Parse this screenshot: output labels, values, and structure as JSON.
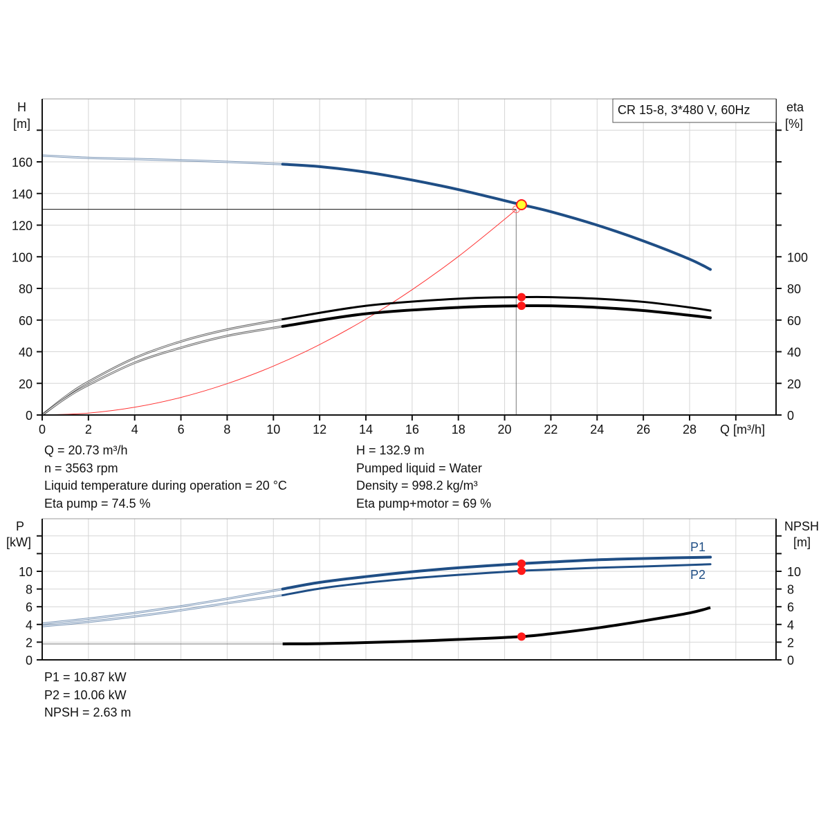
{
  "chart_data": [
    {
      "type": "line",
      "title": "CR 15-8, 3*480 V, 60Hz",
      "xlabel": "Q [m³/h]",
      "ylabel_left": {
        "name": "H",
        "unit": "[m]"
      },
      "ylabel_right": {
        "name": "eta",
        "unit": "[%]"
      },
      "xlim": [
        0,
        31.7
      ],
      "ylim": [
        0,
        200
      ],
      "x_ticks": [
        0,
        2,
        4,
        6,
        8,
        10,
        12,
        14,
        16,
        18,
        20,
        22,
        24,
        26,
        28
      ],
      "y_ticks_left": [
        0,
        20,
        40,
        60,
        80,
        100,
        120,
        140,
        160
      ],
      "y_ticks_right": [
        0,
        20,
        40,
        60,
        80,
        100
      ],
      "grid": true,
      "series": [
        {
          "name": "H",
          "color": "#1f4e85",
          "thin_until": 10.4,
          "x": [
            0,
            2,
            4,
            6,
            8,
            10.4,
            12,
            14,
            16,
            18,
            20,
            20.73,
            22,
            24,
            26,
            28,
            28.9
          ],
          "y": [
            164,
            162.5,
            161.8,
            161,
            160,
            158.5,
            157,
            153.5,
            148.5,
            142.5,
            135.5,
            132.9,
            128.5,
            120,
            110,
            98.5,
            92
          ]
        },
        {
          "name": "Eta pump",
          "color": "#000000",
          "thin_until": 10.4,
          "x": [
            0,
            1,
            2,
            4,
            6,
            8,
            10.4,
            14,
            18,
            20.73,
            22,
            24,
            26,
            28,
            28.9
          ],
          "y": [
            0,
            11.5,
            21,
            36,
            46.5,
            54,
            60.5,
            69,
            73.5,
            74.5,
            74.5,
            73.5,
            71.5,
            68,
            66
          ]
        },
        {
          "name": "Eta pump+motor",
          "color": "#000000",
          "thin_until": 10.4,
          "x": [
            0,
            1,
            2,
            4,
            6,
            8,
            10.4,
            14,
            18,
            20.73,
            22,
            24,
            26,
            28,
            28.9
          ],
          "y": [
            0,
            10.5,
            19,
            33,
            42.5,
            50,
            56,
            64,
            68,
            69,
            69,
            68,
            66,
            63,
            61.5
          ]
        },
        {
          "name": "System curve",
          "color": "#ff3333",
          "x": [
            0,
            2,
            4,
            6,
            8,
            10,
            12,
            14,
            16,
            18,
            20,
            20.5
          ],
          "y": [
            0,
            1.2,
            4.9,
            11.1,
            19.8,
            30.9,
            44.5,
            60.6,
            79.2,
            100.2,
            123.7,
            130
          ]
        }
      ],
      "duty_point": {
        "q": 20.73,
        "h": 132.9,
        "eta_pump": 74.5,
        "eta_total": 69
      },
      "requested_point": {
        "q": 20.5,
        "h": 130
      }
    },
    {
      "type": "line",
      "xlabel": "Q [m³/h]",
      "ylabel_left": {
        "name": "P",
        "unit": "[kW]"
      },
      "ylabel_right": {
        "name": "NPSH",
        "unit": "[m]"
      },
      "xlim": [
        0,
        31.7
      ],
      "ylim": [
        0,
        16
      ],
      "y_ticks": [
        0,
        2,
        4,
        6,
        8,
        10
      ],
      "grid": true,
      "series": [
        {
          "name": "P1",
          "color": "#1f4e85",
          "thin_until": 10.4,
          "x": [
            0,
            2,
            4,
            6,
            8,
            10.4,
            12,
            14,
            16,
            18,
            20.73,
            22,
            24,
            26,
            28.9
          ],
          "y": [
            4.1,
            4.65,
            5.3,
            6.05,
            6.9,
            8,
            8.75,
            9.4,
            9.95,
            10.4,
            10.87,
            11.05,
            11.3,
            11.45,
            11.6
          ]
        },
        {
          "name": "P2",
          "color": "#1f4e85",
          "thin_until": 10.4,
          "x": [
            0,
            2,
            4,
            6,
            8,
            10.4,
            12,
            14,
            16,
            18,
            20.73,
            22,
            24,
            26,
            28.9
          ],
          "y": [
            3.8,
            4.3,
            4.9,
            5.6,
            6.4,
            7.3,
            8.05,
            8.7,
            9.2,
            9.6,
            10.06,
            10.2,
            10.4,
            10.55,
            10.8
          ]
        },
        {
          "name": "NPSH",
          "color": "#000000",
          "x": [
            10.4,
            12,
            14,
            16,
            18,
            20.73,
            22,
            24,
            26,
            28,
            28.9
          ],
          "y": [
            1.8,
            1.83,
            1.95,
            2.1,
            2.3,
            2.63,
            2.95,
            3.6,
            4.4,
            5.3,
            5.9
          ]
        }
      ],
      "npsh_floor": 1.8,
      "duty_point": {
        "q": 20.73,
        "p1": 10.87,
        "p2": 10.06,
        "npsh": 2.63
      }
    }
  ],
  "info_top_left": [
    "Q = 20.73 m³/h",
    "n = 3563 rpm",
    "Liquid temperature during operation = 20 °C",
    "Eta pump = 74.5 %"
  ],
  "info_top_right": [
    "H = 132.9 m",
    "Pumped liquid = Water",
    "Density = 998.2 kg/m³",
    "Eta pump+motor = 69 %"
  ],
  "info_bottom": [
    "P1 = 10.87 kW",
    "P2 = 10.06 kW",
    "NPSH = 2.63 m"
  ]
}
